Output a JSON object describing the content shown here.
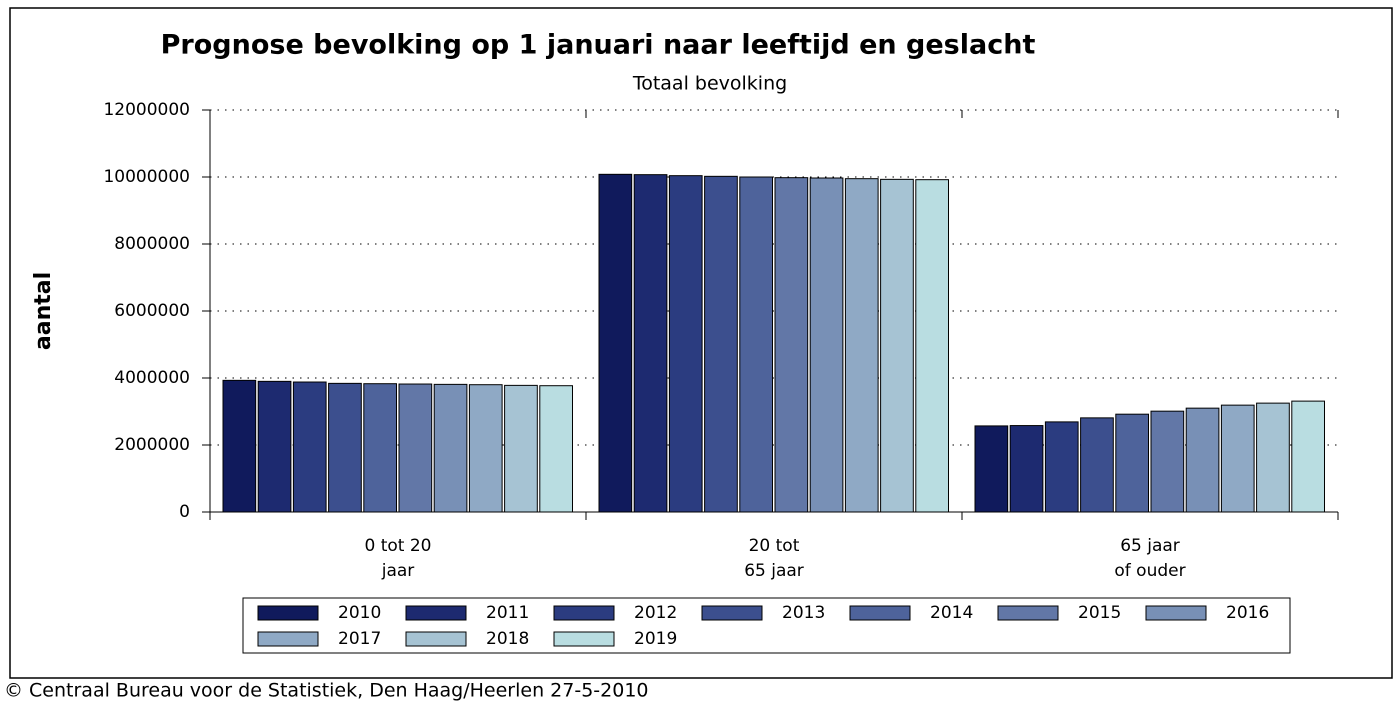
{
  "chart_data": {
    "type": "bar",
    "title": "Prognose bevolking op 1 januari naar leeftijd en geslacht",
    "subtitle": "Totaal bevolking",
    "y_label": "aantal",
    "footer": "© Centraal Bureau voor de Statistiek, Den Haag/Heerlen 27-5-2010",
    "categories": [
      [
        "0 tot 20",
        "jaar"
      ],
      [
        "20 tot",
        "65 jaar"
      ],
      [
        "65 jaar",
        "of ouder"
      ]
    ],
    "series": [
      {
        "name": "2010",
        "color": "#101a5c",
        "values": [
          3930000,
          10080000,
          2570000
        ]
      },
      {
        "name": "2011",
        "color": "#1d2a70",
        "values": [
          3900000,
          10070000,
          2580000
        ]
      },
      {
        "name": "2012",
        "color": "#2b3c80",
        "values": [
          3880000,
          10040000,
          2690000
        ]
      },
      {
        "name": "2013",
        "color": "#3c4f8e",
        "values": [
          3840000,
          10020000,
          2810000
        ]
      },
      {
        "name": "2014",
        "color": "#4e639b",
        "values": [
          3830000,
          10000000,
          2920000
        ]
      },
      {
        "name": "2015",
        "color": "#6277a7",
        "values": [
          3820000,
          9980000,
          3010000
        ]
      },
      {
        "name": "2016",
        "color": "#7890b6",
        "values": [
          3810000,
          9970000,
          3100000
        ]
      },
      {
        "name": "2017",
        "color": "#8fa9c5",
        "values": [
          3800000,
          9950000,
          3190000
        ]
      },
      {
        "name": "2018",
        "color": "#a6c3d3",
        "values": [
          3780000,
          9930000,
          3250000
        ]
      },
      {
        "name": "2019",
        "color": "#b9dde1",
        "values": [
          3770000,
          9920000,
          3310000
        ]
      }
    ],
    "ylim": [
      0,
      12000000
    ],
    "yticks": [
      0,
      2000000,
      4000000,
      6000000,
      8000000,
      10000000,
      12000000
    ],
    "grid": true
  }
}
